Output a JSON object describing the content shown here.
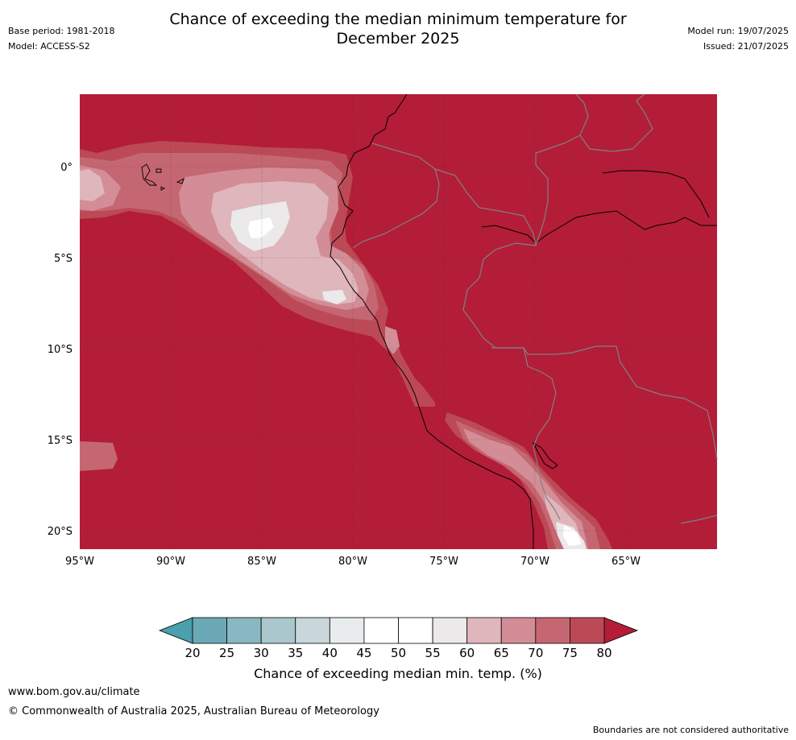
{
  "header": {
    "title_line1": "Chance of exceeding the median minimum temperature for",
    "title_line2": "December 2025",
    "base_period": "Base period: 1981-2018",
    "model": "Model: ACCESS-S2",
    "model_run": "Model run: 19/07/2025",
    "issued": "Issued: 21/07/2025"
  },
  "map": {
    "lat_labels": [
      "0°",
      "5°S",
      "10°S",
      "15°S",
      "20°S"
    ],
    "lon_labels": [
      "95°W",
      "90°W",
      "85°W",
      "80°W",
      "75°W",
      "70°W",
      "65°W"
    ],
    "background_color": "#b31d38"
  },
  "colorbar": {
    "ticks": [
      "20",
      "25",
      "30",
      "35",
      "40",
      "45",
      "50",
      "55",
      "60",
      "65",
      "70",
      "75",
      "80"
    ],
    "colors": [
      "#6aa9b5",
      "#8ab8c2",
      "#a9c7cd",
      "#c9d6da",
      "#e8ecee",
      "#ffffff",
      "#ffffff",
      "#ebe9ea",
      "#dfb6bc",
      "#d38d96",
      "#c56772",
      "#bc4a56"
    ],
    "low_extend_color": "#4c9fad",
    "high_extend_color": "#b31d38",
    "label": "Chance of exceeding median min. temp. (%)"
  },
  "footer": {
    "url": "www.bom.gov.au/climate",
    "copyright": "© Commonwealth of Australia 2025, Australian Bureau of Meteorology",
    "note": "Boundaries are not considered authoritative"
  }
}
